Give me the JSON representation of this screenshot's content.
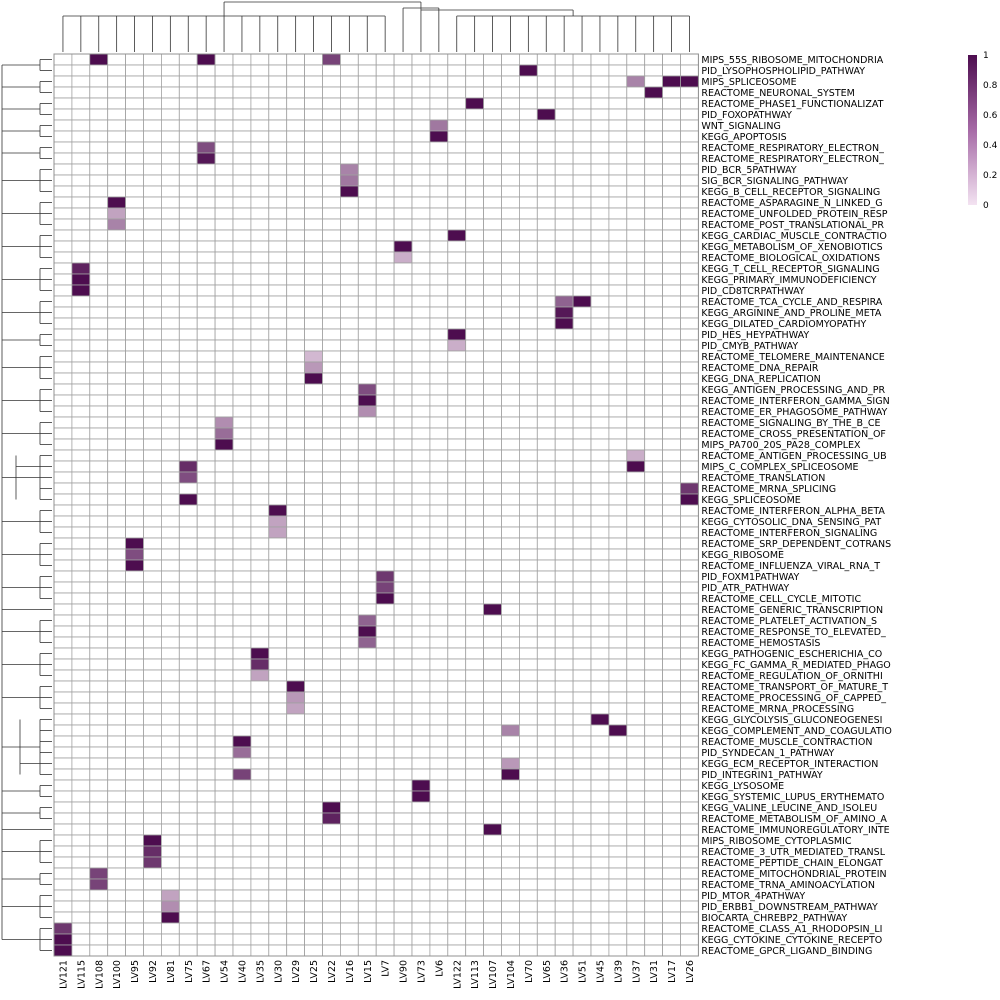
{
  "chart_data": {
    "type": "heatmap",
    "color_scale": {
      "min": 0,
      "max": 1,
      "low_color": "#ffffff",
      "high_color": "#4d0d4f",
      "ticks": [
        "0",
        "0.2",
        "0.4",
        "0.6",
        "0.8",
        "1"
      ]
    },
    "grid": true,
    "row_dendrogram": true,
    "col_dendrogram": true,
    "legend_position": "top-right",
    "columns": [
      "LV121",
      "LV115",
      "LV108",
      "LV100",
      "LV95",
      "LV92",
      "LV81",
      "LV75",
      "LV67",
      "LV54",
      "LV40",
      "LV35",
      "LV30",
      "LV29",
      "LV25",
      "LV22",
      "LV16",
      "LV15",
      "LV7",
      "LV90",
      "LV73",
      "LV6",
      "LV122",
      "LV113",
      "LV107",
      "LV104",
      "LV70",
      "LV65",
      "LV36",
      "LV51",
      "LV45",
      "LV39",
      "LV37",
      "LV31",
      "LV17",
      "LV26"
    ],
    "rows": [
      "MIPS_55S_RIBOSOME_MITOCHONDRIA",
      "PID_LYSOPHOSPHOLIPID_PATHWAY",
      "MIPS_SPLICEOSOME",
      "REACTOME_NEURONAL_SYSTEM",
      "REACTOME_PHASE1_FUNCTIONALIZAT",
      "PID_FOXOPATHWAY",
      "WNT_SIGNALING",
      "KEGG_APOPTOSIS",
      "REACTOME_RESPIRATORY_ELECTRON_",
      "REACTOME_RESPIRATORY_ELECTRON_",
      "PID_BCR_5PATHWAY",
      "SIG_BCR_SIGNALING_PATHWAY",
      "KEGG_B_CELL_RECEPTOR_SIGNALING",
      "REACTOME_ASPARAGINE_N_LINKED_G",
      "REACTOME_UNFOLDED_PROTEIN_RESP",
      "REACTOME_POST_TRANSLATIONAL_PR",
      "KEGG_CARDIAC_MUSCLE_CONTRACTIO",
      "KEGG_METABOLISM_OF_XENOBIOTICS",
      "REACTOME_BIOLOGICAL_OXIDATIONS",
      "KEGG_T_CELL_RECEPTOR_SIGNALING",
      "KEGG_PRIMARY_IMMUNODEFICIENCY",
      "PID_CD8TCRPATHWAY",
      "REACTOME_TCA_CYCLE_AND_RESPIRA",
      "KEGG_ARGININE_AND_PROLINE_META",
      "KEGG_DILATED_CARDIOMYOPATHY",
      "PID_HES_HEYPATHWAY",
      "PID_CMYB_PATHWAY",
      "REACTOME_TELOMERE_MAINTENANCE",
      "REACTOME_DNA_REPAIR",
      "KEGG_DNA_REPLICATION",
      "KEGG_ANTIGEN_PROCESSING_AND_PR",
      "REACTOME_INTERFERON_GAMMA_SIGN",
      "REACTOME_ER_PHAGOSOME_PATHWAY",
      "REACTOME_SIGNALING_BY_THE_B_CE",
      "REACTOME_CROSS_PRESENTATION_OF",
      "MIPS_PA700_20S_PA28_COMPLEX",
      "REACTOME_ANTIGEN_PROCESSING_UB",
      "MIPS_C_COMPLEX_SPLICEOSOME",
      "REACTOME_TRANSLATION",
      "REACTOME_MRNA_SPLICING",
      "KEGG_SPLICEOSOME",
      "REACTOME_INTERFERON_ALPHA_BETA",
      "KEGG_CYTOSOLIC_DNA_SENSING_PAT",
      "REACTOME_INTERFERON_SIGNALING",
      "REACTOME_SRP_DEPENDENT_COTRANS",
      "KEGG_RIBOSOME",
      "REACTOME_INFLUENZA_VIRAL_RNA_T",
      "PID_FOXM1PATHWAY",
      "PID_ATR_PATHWAY",
      "REACTOME_CELL_CYCLE_MITOTIC",
      "REACTOME_GENERIC_TRANSCRIPTION",
      "REACTOME_PLATELET_ACTIVATION_S",
      "REACTOME_RESPONSE_TO_ELEVATED_",
      "REACTOME_HEMOSTASIS",
      "KEGG_PATHOGENIC_ESCHERICHIA_CO",
      "KEGG_FC_GAMMA_R_MEDIATED_PHAGO",
      "REACTOME_REGULATION_OF_ORNITHI",
      "REACTOME_TRANSPORT_OF_MATURE_T",
      "REACTOME_PROCESSING_OF_CAPPED_",
      "REACTOME_MRNA_PROCESSING",
      "KEGG_GLYCOLYSIS_GLUCONEOGENESI",
      "KEGG_COMPLEMENT_AND_COAGULATIO",
      "REACTOME_MUSCLE_CONTRACTION",
      "PID_SYNDECAN_1_PATHWAY",
      "KEGG_ECM_RECEPTOR_INTERACTION",
      "PID_INTEGRIN1_PATHWAY",
      "KEGG_LYSOSOME",
      "KEGG_SYSTEMIC_LUPUS_ERYTHEMATO",
      "KEGG_VALINE_LEUCINE_AND_ISOLEU",
      "REACTOME_METABOLISM_OF_AMINO_A",
      "REACTOME_IMMUNOREGULATORY_INTE",
      "MIPS_RIBOSOME_CYTOPLASMIC",
      "REACTOME_3_UTR_MEDIATED_TRANSL",
      "REACTOME_PEPTIDE_CHAIN_ELONGAT",
      "REACTOME_MITOCHONDRIAL_PROTEIN",
      "REACTOME_TRNA_AMINOACYLATION",
      "PID_MTOR_4PATHWAY",
      "PID_ERBB1_DOWNSTREAM_PATHWAY",
      "BIOCARTA_CHREBP2_PATHWAY",
      "REACTOME_CLASS_A1_RHODOPSIN_LI",
      "KEGG_CYTOKINE_CYTOKINE_RECEPTO",
      "REACTOME_GPCR_LIGAND_BINDING"
    ],
    "cells": [
      [
        0,
        2,
        1.0
      ],
      [
        0,
        8,
        1.0
      ],
      [
        0,
        15,
        0.75
      ],
      [
        1,
        26,
        1.0
      ],
      [
        2,
        32,
        0.45
      ],
      [
        2,
        34,
        1.0
      ],
      [
        2,
        35,
        1.0
      ],
      [
        3,
        33,
        1.0
      ],
      [
        4,
        23,
        1.0
      ],
      [
        5,
        27,
        1.0
      ],
      [
        6,
        21,
        0.5
      ],
      [
        7,
        21,
        1.0
      ],
      [
        8,
        8,
        0.7
      ],
      [
        9,
        8,
        0.95
      ],
      [
        10,
        16,
        0.45
      ],
      [
        11,
        16,
        0.5
      ],
      [
        12,
        16,
        1.0
      ],
      [
        13,
        3,
        1.0
      ],
      [
        14,
        3,
        0.3
      ],
      [
        15,
        3,
        0.45
      ],
      [
        16,
        22,
        1.0
      ],
      [
        17,
        19,
        1.0
      ],
      [
        18,
        19,
        0.25
      ],
      [
        19,
        1,
        0.9
      ],
      [
        20,
        1,
        1.0
      ],
      [
        21,
        1,
        1.0
      ],
      [
        22,
        28,
        0.6
      ],
      [
        22,
        29,
        1.0
      ],
      [
        23,
        28,
        0.95
      ],
      [
        24,
        28,
        1.0
      ],
      [
        25,
        22,
        1.0
      ],
      [
        26,
        22,
        0.25
      ],
      [
        27,
        14,
        0.2
      ],
      [
        28,
        14,
        0.35
      ],
      [
        29,
        14,
        1.0
      ],
      [
        30,
        17,
        0.7
      ],
      [
        31,
        17,
        1.0
      ],
      [
        32,
        17,
        0.4
      ],
      [
        33,
        9,
        0.4
      ],
      [
        34,
        9,
        0.55
      ],
      [
        35,
        9,
        1.0
      ],
      [
        36,
        32,
        0.25
      ],
      [
        37,
        7,
        0.85
      ],
      [
        37,
        32,
        1.0
      ],
      [
        38,
        7,
        0.7
      ],
      [
        39,
        35,
        0.8
      ],
      [
        40,
        7,
        1.0
      ],
      [
        40,
        35,
        1.0
      ],
      [
        41,
        12,
        1.0
      ],
      [
        42,
        12,
        0.3
      ],
      [
        43,
        12,
        0.3
      ],
      [
        44,
        4,
        1.0
      ],
      [
        45,
        4,
        0.7
      ],
      [
        46,
        4,
        1.0
      ],
      [
        47,
        18,
        0.8
      ],
      [
        48,
        18,
        0.75
      ],
      [
        49,
        18,
        1.0
      ],
      [
        50,
        24,
        1.0
      ],
      [
        51,
        17,
        0.6
      ],
      [
        52,
        17,
        1.0
      ],
      [
        53,
        17,
        0.6
      ],
      [
        54,
        11,
        1.0
      ],
      [
        55,
        11,
        0.85
      ],
      [
        56,
        11,
        0.3
      ],
      [
        57,
        13,
        1.0
      ],
      [
        58,
        13,
        0.35
      ],
      [
        59,
        13,
        0.3
      ],
      [
        60,
        30,
        1.0
      ],
      [
        61,
        25,
        0.45
      ],
      [
        61,
        31,
        1.0
      ],
      [
        62,
        10,
        1.0
      ],
      [
        63,
        10,
        0.55
      ],
      [
        64,
        25,
        0.35
      ],
      [
        65,
        10,
        0.75
      ],
      [
        65,
        25,
        1.0
      ],
      [
        66,
        20,
        1.0
      ],
      [
        67,
        20,
        1.0
      ],
      [
        68,
        15,
        1.0
      ],
      [
        69,
        15,
        0.9
      ],
      [
        70,
        24,
        1.0
      ],
      [
        71,
        5,
        1.0
      ],
      [
        72,
        5,
        0.85
      ],
      [
        73,
        5,
        0.8
      ],
      [
        74,
        2,
        0.75
      ],
      [
        75,
        2,
        0.75
      ],
      [
        76,
        6,
        0.3
      ],
      [
        77,
        6,
        0.4
      ],
      [
        78,
        6,
        1.0
      ],
      [
        79,
        0,
        0.8
      ],
      [
        80,
        0,
        1.0
      ],
      [
        81,
        0,
        1.0
      ]
    ]
  }
}
